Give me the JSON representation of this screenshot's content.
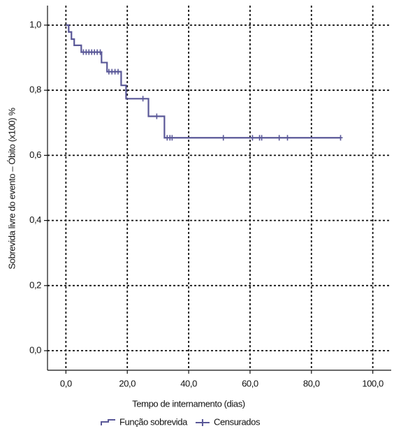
{
  "chart_data": {
    "type": "kaplan-meier",
    "xlabel": "Tempo de internamento (dias)",
    "ylabel": "Sobrevida livre do evento – Óbito (x100) %",
    "xlim": [
      -6,
      106
    ],
    "ylim": [
      -0.06,
      1.06
    ],
    "xticks": [
      {
        "value": 0,
        "label": "0,0"
      },
      {
        "value": 20,
        "label": "20,0"
      },
      {
        "value": 40,
        "label": "40,0"
      },
      {
        "value": 60,
        "label": "60,0"
      },
      {
        "value": 80,
        "label": "80,0"
      },
      {
        "value": 100,
        "label": "100,0"
      }
    ],
    "yticks": [
      {
        "value": 0,
        "label": "0,0"
      },
      {
        "value": 0.2,
        "label": "0,2"
      },
      {
        "value": 0.4,
        "label": "0,4"
      },
      {
        "value": 0.6,
        "label": "0,6"
      },
      {
        "value": 0.8,
        "label": "0,8"
      },
      {
        "value": 1,
        "label": "1,0"
      }
    ],
    "grid": true,
    "legend": "bottom",
    "series": [
      {
        "name": "Função sobrevida",
        "color": "#5a5898",
        "kind": "step",
        "x": [
          0,
          0.9,
          1.8,
          2.7,
          5.0,
          11.6,
          13.4,
          18.0,
          19.6,
          26.9,
          32.1,
          89.5
        ],
        "values": [
          1.0,
          0.979,
          0.957,
          0.938,
          0.917,
          0.885,
          0.857,
          0.815,
          0.774,
          0.72,
          0.654,
          0.654
        ]
      },
      {
        "name": "Censurados",
        "color": "#5a5898",
        "kind": "censor",
        "x": [
          5.7,
          6.6,
          7.5,
          8.4,
          9.3,
          10.2,
          11.2,
          14.0,
          15.0,
          16.0,
          17.0,
          25.1,
          29.6,
          33.0,
          33.9,
          34.6,
          51.3,
          60.8,
          63.1,
          63.8,
          69.5,
          72.2,
          89.5
        ],
        "values": [
          0.917,
          0.917,
          0.917,
          0.917,
          0.917,
          0.917,
          0.917,
          0.857,
          0.857,
          0.857,
          0.857,
          0.774,
          0.72,
          0.654,
          0.654,
          0.654,
          0.654,
          0.654,
          0.654,
          0.654,
          0.654,
          0.654,
          0.654
        ]
      }
    ]
  }
}
